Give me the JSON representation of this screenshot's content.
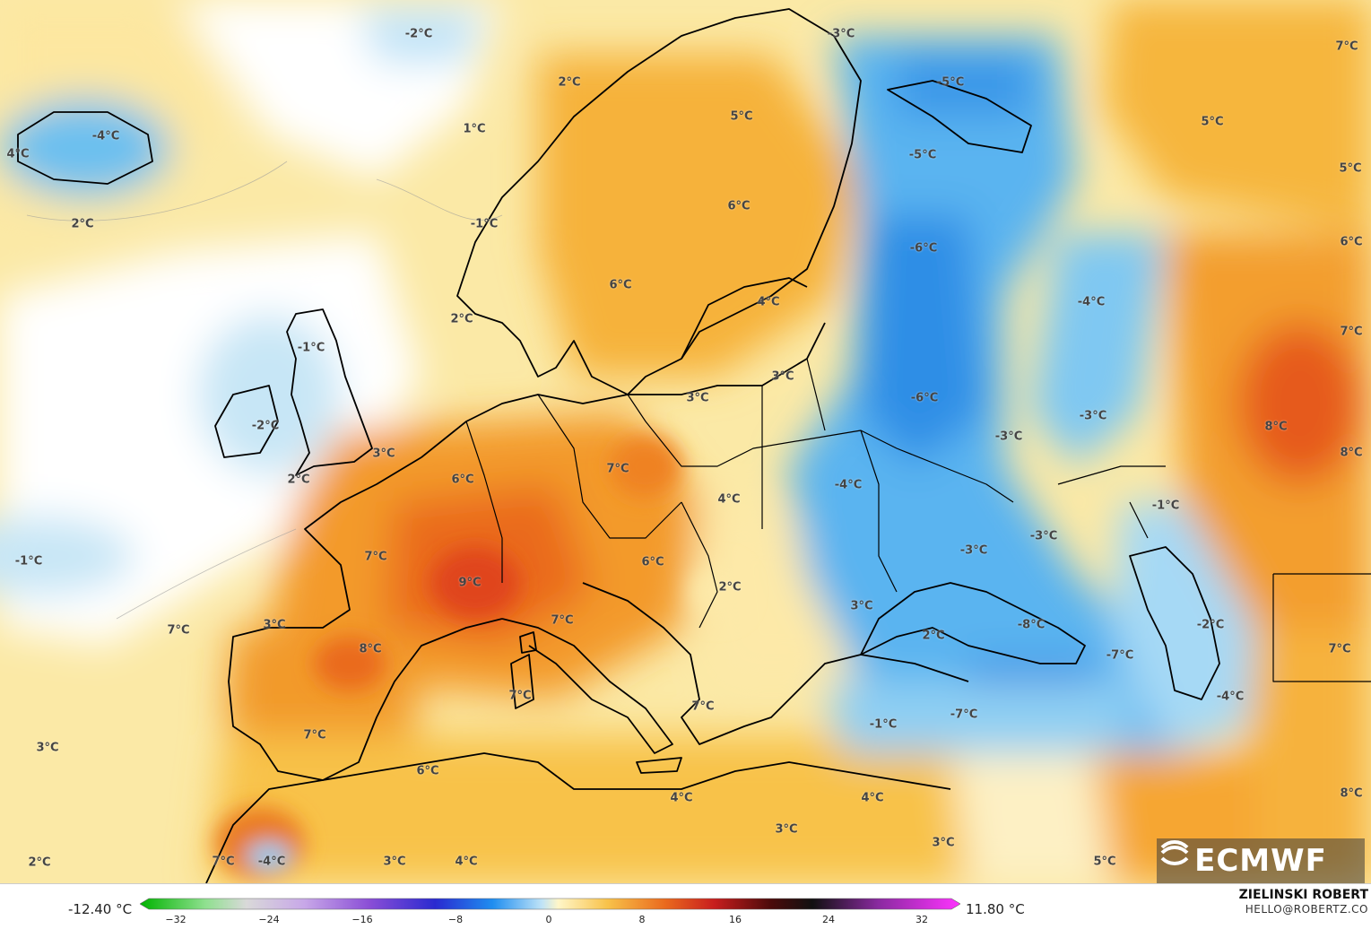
{
  "colorbar": {
    "min_label": "-12.40 °C",
    "max_label": "11.80 °C",
    "ticks": [
      "−32",
      "−24",
      "−16",
      "−8",
      "0",
      "8",
      "16",
      "24",
      "32"
    ]
  },
  "credit": {
    "author": "ZIELINSKI ROBERT",
    "email": "HELLO@ROBERTZ.CO"
  },
  "logo": {
    "text": "ECMWF"
  },
  "labels": [
    {
      "t": "-2°C"
    },
    {
      "t": "-3°C"
    },
    {
      "t": "7°C"
    },
    {
      "t": "2°C"
    },
    {
      "t": "-5°C"
    },
    {
      "t": "1°C"
    },
    {
      "t": "5°C"
    },
    {
      "t": "5°C"
    },
    {
      "t": "-4°C"
    },
    {
      "t": "4°C"
    },
    {
      "t": "-5°C"
    },
    {
      "t": "5°C"
    },
    {
      "t": "2°C"
    },
    {
      "t": "6°C"
    },
    {
      "t": "-1°C"
    },
    {
      "t": "-6°C"
    },
    {
      "t": "6°C"
    },
    {
      "t": "6°C"
    },
    {
      "t": "-4°C"
    },
    {
      "t": "4°C"
    },
    {
      "t": "2°C"
    },
    {
      "t": "-1°C"
    },
    {
      "t": "7°C"
    },
    {
      "t": "3°C"
    },
    {
      "t": "3°C"
    },
    {
      "t": "-6°C"
    },
    {
      "t": "-2°C"
    },
    {
      "t": "-3°C"
    },
    {
      "t": "8°C"
    },
    {
      "t": "3°C"
    },
    {
      "t": "-3°C"
    },
    {
      "t": "8°C"
    },
    {
      "t": "6°C"
    },
    {
      "t": "7°C"
    },
    {
      "t": "2°C"
    },
    {
      "t": "-4°C"
    },
    {
      "t": "4°C"
    },
    {
      "t": "-1°C"
    },
    {
      "t": "-3°C"
    },
    {
      "t": "-3°C"
    },
    {
      "t": "-1°C"
    },
    {
      "t": "7°C"
    },
    {
      "t": "6°C"
    },
    {
      "t": "9°C"
    },
    {
      "t": "2°C"
    },
    {
      "t": "3°C"
    },
    {
      "t": "3°C"
    },
    {
      "t": "7°C"
    },
    {
      "t": "8°C"
    },
    {
      "t": "2°C"
    },
    {
      "t": "-8°C"
    },
    {
      "t": "-2°C"
    },
    {
      "t": "-7°C"
    },
    {
      "t": "7°C"
    },
    {
      "t": "7°C"
    },
    {
      "t": "7°C"
    },
    {
      "t": "-4°C"
    },
    {
      "t": "-1°C"
    },
    {
      "t": "-7°C"
    },
    {
      "t": "7°C"
    },
    {
      "t": "3°C"
    },
    {
      "t": "6°C"
    },
    {
      "t": "4°C"
    },
    {
      "t": "4°C"
    },
    {
      "t": "8°C"
    },
    {
      "t": "3°C"
    },
    {
      "t": "7°C"
    },
    {
      "t": "3°C"
    },
    {
      "t": "2°C"
    },
    {
      "t": "7°C"
    },
    {
      "t": "-4°C"
    },
    {
      "t": "3°C"
    },
    {
      "t": "4°C"
    },
    {
      "t": "5°C"
    }
  ],
  "colors": {
    "cold_deep": "#1f6fe0",
    "cold": "#5ab4f0",
    "cool": "#bfe3f7",
    "neutral": "#fdf6dc",
    "mild": "#fbd66a",
    "warm": "#f5a623",
    "hot": "#e8561e",
    "coast": "#000000"
  }
}
